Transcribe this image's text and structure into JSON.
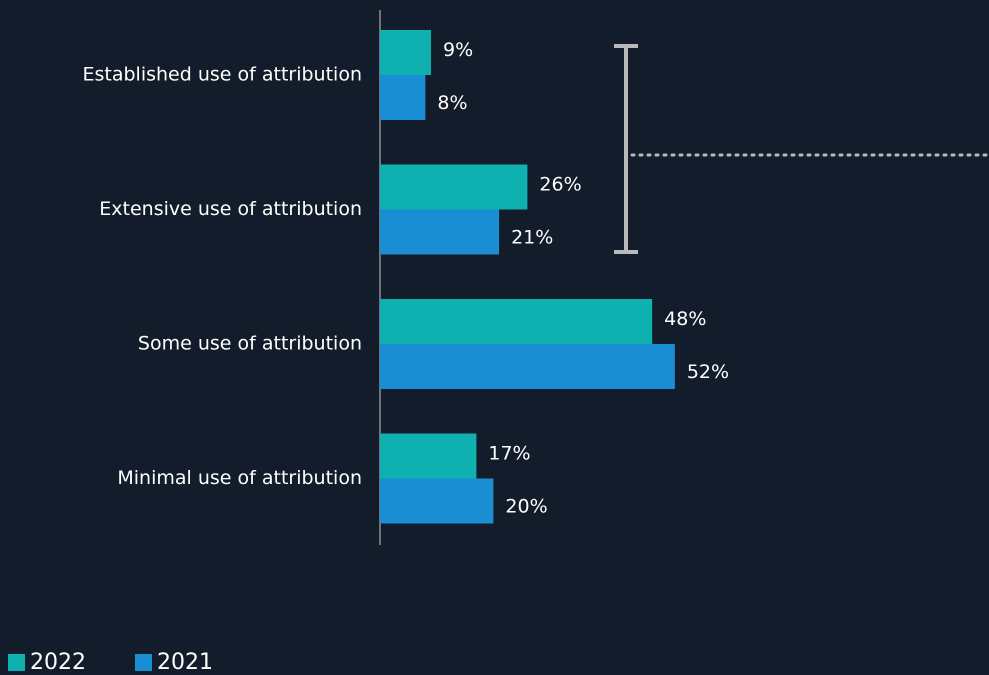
{
  "chart_data": {
    "type": "bar",
    "orientation": "horizontal",
    "categories": [
      "Established use of attribution",
      "Extensive use of attribution",
      "Some use of attribution",
      "Minimal use of attribution"
    ],
    "series": [
      {
        "name": "2022",
        "color": "#0fb0b0",
        "values": [
          9,
          26,
          48,
          17
        ],
        "value_labels": [
          "9%",
          "26%",
          "48%",
          "17%"
        ]
      },
      {
        "name": "2021",
        "color": "#1a8ed3",
        "values": [
          8,
          21,
          52,
          20
        ],
        "value_labels": [
          "8%",
          "21%",
          "52%",
          "20%"
        ]
      }
    ],
    "legend": "bottom-left"
  }
}
